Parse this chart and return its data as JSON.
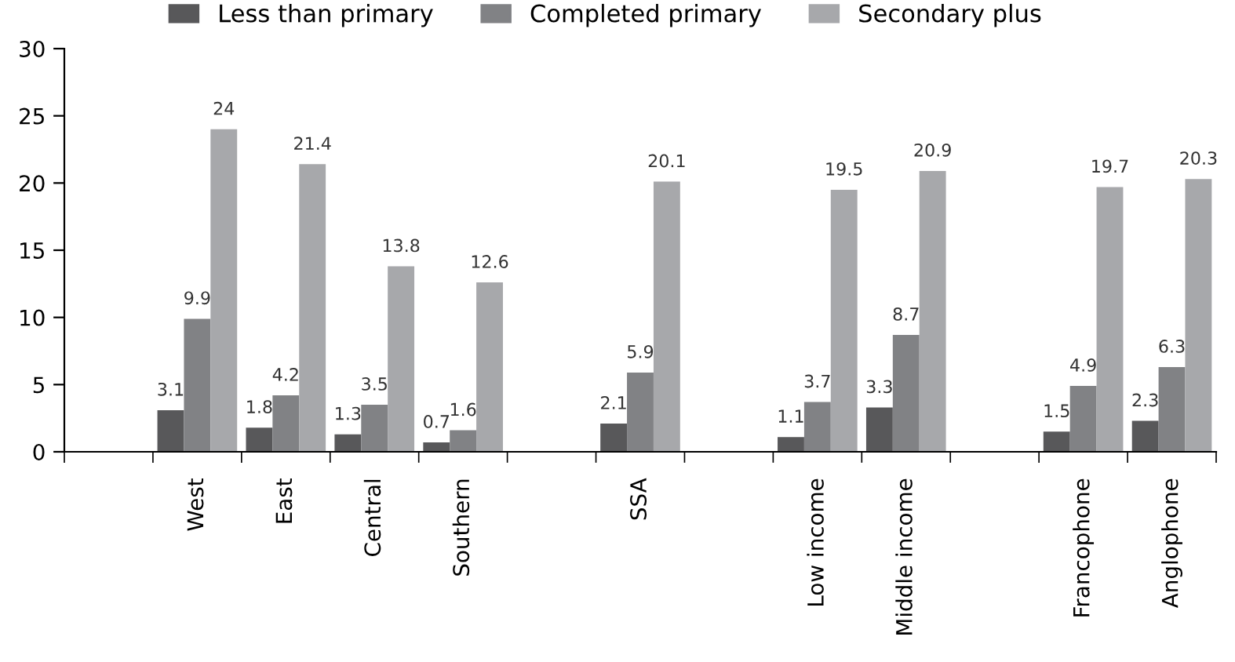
{
  "chart_data": {
    "type": "bar",
    "categories": [
      null,
      "West",
      "East",
      "Central",
      "Southern",
      null,
      "SSA",
      null,
      "Low income",
      "Middle income",
      null,
      "Francophone",
      "Anglophone"
    ],
    "series": [
      {
        "name": "Less than primary",
        "color": "#58585a",
        "values": [
          null,
          3.1,
          1.8,
          1.3,
          0.7,
          null,
          2.1,
          null,
          1.1,
          3.3,
          null,
          1.5,
          2.3
        ]
      },
      {
        "name": "Completed primary",
        "color": "#818285",
        "values": [
          null,
          9.9,
          4.2,
          3.5,
          1.6,
          null,
          5.9,
          null,
          3.7,
          8.7,
          null,
          4.9,
          6.3
        ]
      },
      {
        "name": "Secondary plus",
        "color": "#a7a8ab",
        "values": [
          null,
          24,
          21.4,
          13.8,
          12.6,
          null,
          20.1,
          null,
          19.5,
          20.9,
          null,
          19.7,
          20.3
        ]
      }
    ],
    "ylim": [
      0,
      30
    ],
    "yticks": [
      0,
      5,
      10,
      15,
      20,
      25,
      30
    ],
    "data_labels": true,
    "grid": false,
    "legend": "top"
  }
}
